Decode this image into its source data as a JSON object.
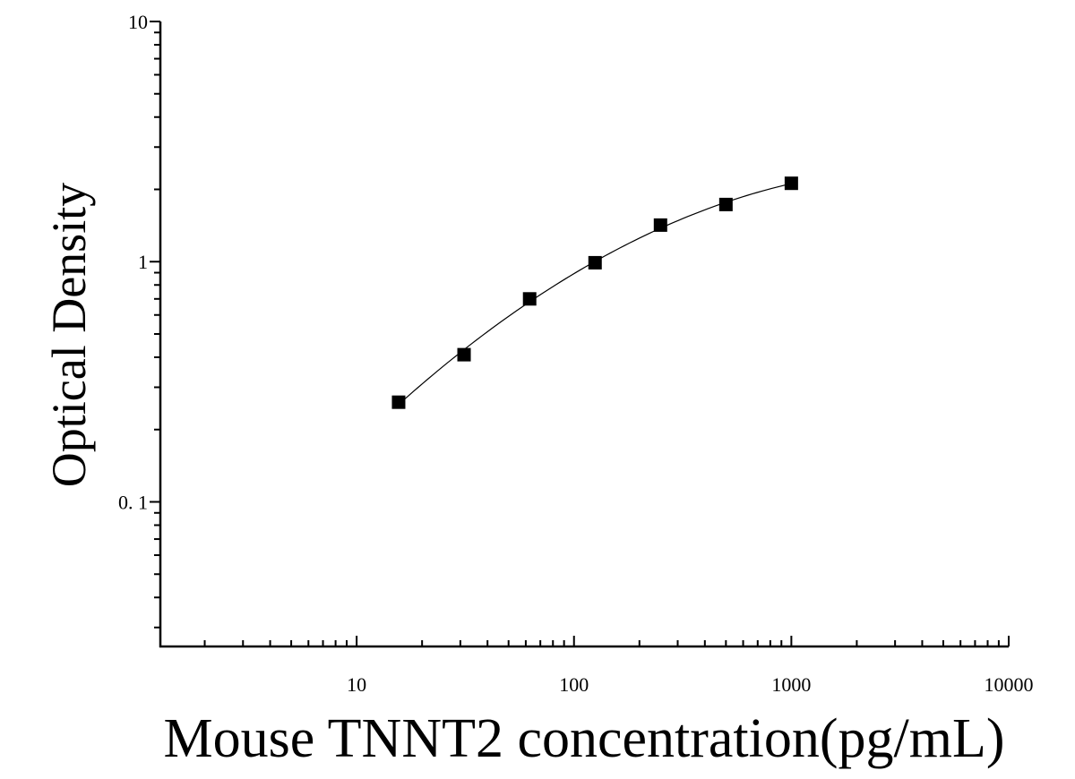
{
  "chart_data": {
    "type": "scatter",
    "title": "",
    "xlabel": "Mouse TNNT2 concentration(pg/mL)",
    "ylabel": "Optical Density",
    "xscale": "log",
    "yscale": "log",
    "xlim": [
      1.25,
      10000
    ],
    "ylim": [
      0.025,
      10
    ],
    "x_tick_labels": [
      {
        "value": 10,
        "label": "10"
      },
      {
        "value": 100,
        "label": "100"
      },
      {
        "value": 1000,
        "label": "1000"
      },
      {
        "value": 10000,
        "label": "10000"
      }
    ],
    "y_tick_labels": [
      {
        "value": 0.1,
        "label": "0. 1"
      },
      {
        "value": 1,
        "label": "1"
      },
      {
        "value": 10,
        "label": "10"
      }
    ],
    "grid": false,
    "legend": "none",
    "series": [
      {
        "marker": "square",
        "fit_curve": true,
        "points": [
          {
            "x": 15.6,
            "y": 0.26
          },
          {
            "x": 31.2,
            "y": 0.41
          },
          {
            "x": 62.5,
            "y": 0.7
          },
          {
            "x": 125,
            "y": 0.99
          },
          {
            "x": 250,
            "y": 1.42
          },
          {
            "x": 500,
            "y": 1.73
          },
          {
            "x": 1000,
            "y": 2.12
          }
        ]
      }
    ],
    "colors": {
      "marker": "#000000",
      "axis": "#000000",
      "curve": "#000000"
    }
  }
}
